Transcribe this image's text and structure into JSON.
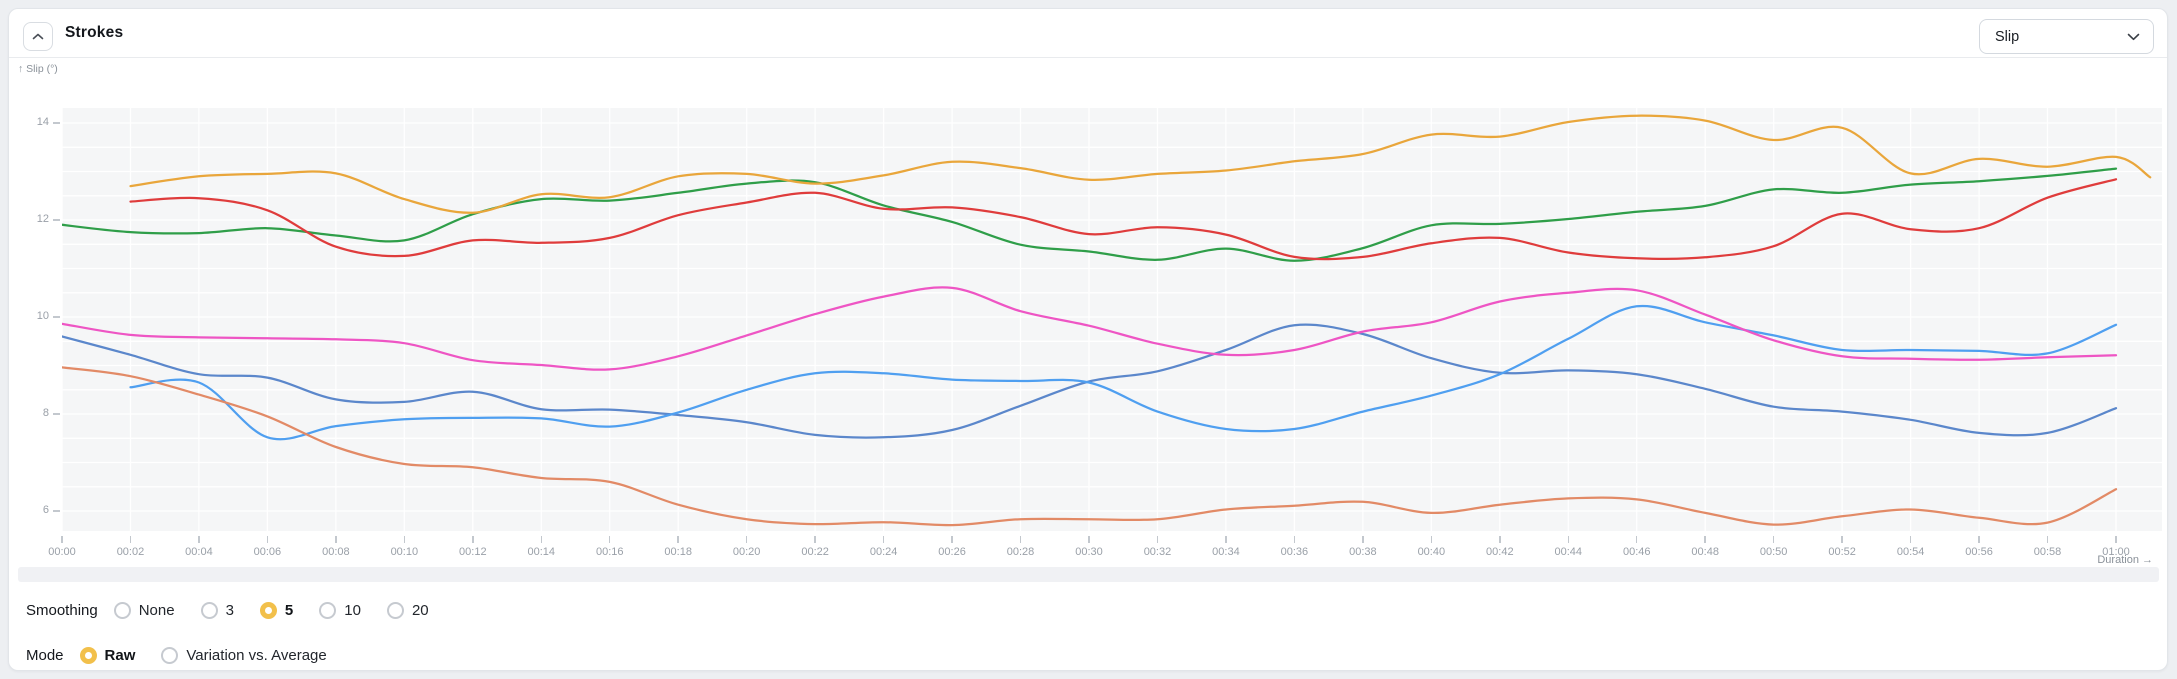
{
  "header": {
    "title": "Strokes",
    "collapse_icon": "chevron-up",
    "metric_dropdown": {
      "value": "Slip",
      "icon": "chevron-down"
    }
  },
  "chart": {
    "y_axis": {
      "title": "↑ Slip (°)",
      "major_ticks": [
        14,
        12,
        10,
        8,
        6
      ]
    },
    "x_axis": {
      "title": "Duration →",
      "tick_labels": [
        "00:00",
        "00:02",
        "00:04",
        "00:06",
        "00:08",
        "00:10",
        "00:12",
        "00:14",
        "00:16",
        "00:18",
        "00:20",
        "00:22",
        "00:24",
        "00:26",
        "00:28",
        "00:30",
        "00:32",
        "00:34",
        "00:36",
        "00:38",
        "00:40",
        "00:42",
        "00:44",
        "00:46",
        "00:48",
        "00:50",
        "00:52",
        "00:54",
        "00:56",
        "00:58",
        "01:00"
      ]
    }
  },
  "chart_data": {
    "type": "line",
    "title": "Strokes — Slip (°) vs Duration",
    "xlabel": "Duration",
    "ylabel": "Slip (°)",
    "x_minutes": [
      0,
      2,
      4,
      6,
      8,
      10,
      12,
      14,
      16,
      18,
      20,
      22,
      24,
      26,
      28,
      30,
      32,
      34,
      36,
      38,
      40,
      42,
      44,
      46,
      48,
      50,
      52,
      54,
      56,
      58,
      60,
      61
    ],
    "x_tick_step_minutes": 2,
    "ylim": [
      5.59,
      14.31
    ],
    "grid": {
      "horizontal_step": 0.5,
      "vertical_step_minutes": 2,
      "color": "#ffffff"
    },
    "legend": "none",
    "series": [
      {
        "name": "blue",
        "color": "#5b87cb",
        "values": [
          9.6,
          9.22,
          8.82,
          8.75,
          8.3,
          8.25,
          8.46,
          8.1,
          8.09,
          7.98,
          7.83,
          7.57,
          7.52,
          7.67,
          8.17,
          8.67,
          8.88,
          9.32,
          9.83,
          9.65,
          9.15,
          8.85,
          8.9,
          8.82,
          8.52,
          8.15,
          8.05,
          7.88,
          7.61,
          7.61,
          8.12,
          null
        ]
      },
      {
        "name": "light-blue",
        "color": "#4f9ff0",
        "values": [
          null,
          8.55,
          8.65,
          7.52,
          7.75,
          7.89,
          7.92,
          7.91,
          7.74,
          8.03,
          8.5,
          8.84,
          8.84,
          8.71,
          8.68,
          8.65,
          8.05,
          7.69,
          7.69,
          8.05,
          8.38,
          8.82,
          9.55,
          10.22,
          9.89,
          9.62,
          9.32,
          9.32,
          9.3,
          9.25,
          9.84,
          null
        ]
      },
      {
        "name": "salmon",
        "color": "#e28a66",
        "values": [
          8.96,
          8.78,
          8.4,
          7.95,
          7.32,
          6.97,
          6.9,
          6.68,
          6.6,
          6.13,
          5.83,
          5.73,
          5.77,
          5.71,
          5.83,
          5.83,
          5.83,
          6.03,
          6.11,
          6.19,
          5.96,
          6.13,
          6.26,
          6.24,
          5.96,
          5.72,
          5.89,
          6.03,
          5.86,
          5.76,
          6.45,
          null
        ]
      },
      {
        "name": "green",
        "color": "#2f9e49",
        "values": [
          11.9,
          11.75,
          11.73,
          11.83,
          11.68,
          11.58,
          12.12,
          12.43,
          12.4,
          12.56,
          12.75,
          12.78,
          12.3,
          11.96,
          11.49,
          11.35,
          11.18,
          11.41,
          11.16,
          11.42,
          11.89,
          11.92,
          12.02,
          12.17,
          12.29,
          12.63,
          12.56,
          12.73,
          12.8,
          12.91,
          13.06,
          null
        ]
      },
      {
        "name": "red",
        "color": "#df3c3c",
        "values": [
          null,
          12.38,
          12.45,
          12.2,
          11.45,
          11.26,
          11.58,
          11.53,
          11.63,
          12.1,
          12.36,
          12.56,
          12.23,
          12.26,
          12.06,
          11.71,
          11.85,
          11.7,
          11.24,
          11.24,
          11.52,
          11.63,
          11.33,
          11.21,
          11.23,
          11.46,
          12.13,
          11.81,
          11.83,
          12.46,
          12.84,
          null
        ]
      },
      {
        "name": "orange",
        "color": "#e9a63b",
        "values": [
          null,
          12.7,
          12.9,
          12.95,
          12.96,
          12.43,
          12.15,
          12.53,
          12.47,
          12.9,
          12.95,
          12.75,
          12.92,
          13.2,
          13.07,
          12.83,
          12.95,
          13.02,
          13.21,
          13.36,
          13.76,
          13.72,
          14.02,
          14.15,
          14.05,
          13.65,
          13.9,
          12.96,
          13.26,
          13.1,
          13.3,
          12.88
        ]
      },
      {
        "name": "pink",
        "color": "#ee55c4",
        "values": [
          9.86,
          9.63,
          9.58,
          9.56,
          9.54,
          9.46,
          9.11,
          9.01,
          8.92,
          9.19,
          9.62,
          10.06,
          10.42,
          10.6,
          10.12,
          9.82,
          9.45,
          9.22,
          9.32,
          9.7,
          9.89,
          10.32,
          10.5,
          10.55,
          10.05,
          9.52,
          9.19,
          9.14,
          9.12,
          9.17,
          9.21,
          null
        ]
      }
    ]
  },
  "controls": {
    "smoothing": {
      "label": "Smoothing",
      "options": [
        "None",
        "3",
        "5",
        "10",
        "20"
      ],
      "selected": "5"
    },
    "mode": {
      "label": "Mode",
      "options": [
        "Raw",
        "Variation vs. Average"
      ],
      "selected": "Raw"
    }
  },
  "colors": {
    "accent_radio": "#f2c04b",
    "plot_background": "#f5f6f7",
    "gridline": "#ffffff",
    "card_border": "#e2e5e9",
    "page_background": "#edeff2",
    "tick_text": "#9aa0a8",
    "axis_title_text": "#8a9199"
  }
}
